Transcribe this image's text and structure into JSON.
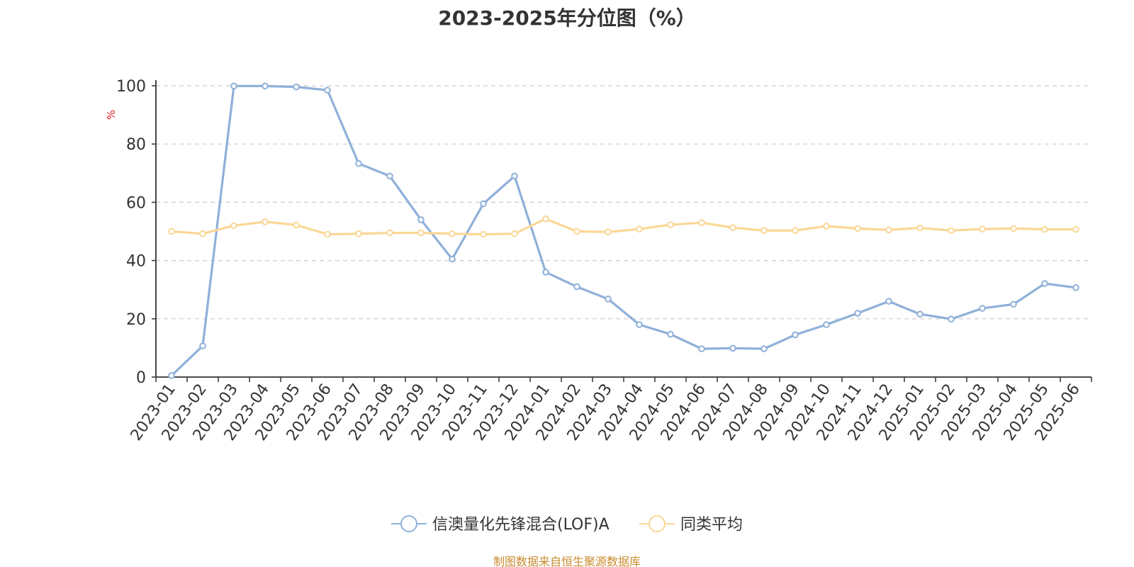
{
  "chart_data": {
    "type": "line",
    "title": "2023-2025年分位图（%）",
    "ylabel": "%",
    "xlabel": "",
    "ylim": [
      0,
      100
    ],
    "yticks": [
      "0",
      "20",
      "40",
      "60",
      "80",
      "100"
    ],
    "grid": true,
    "legend_position": "bottom-center",
    "categories": [
      "2023-01",
      "2023-02",
      "2023-03",
      "2023-04",
      "2023-05",
      "2023-06",
      "2023-07",
      "2023-08",
      "2023-09",
      "2023-10",
      "2023-11",
      "2023-12",
      "2024-01",
      "2024-02",
      "2024-03",
      "2024-04",
      "2024-05",
      "2024-06",
      "2024-07",
      "2024-08",
      "2024-09",
      "2024-10",
      "2024-11",
      "2024-12",
      "2025-01",
      "2025-02",
      "2025-03",
      "2025-04",
      "2025-05",
      "2025-06"
    ],
    "series": [
      {
        "name": "信澳量化先锋混合(LOF)A",
        "color": "#8fb0d9",
        "values": [
          0.5,
          10.7,
          99.9,
          99.9,
          99.6,
          98.5,
          73.3,
          69.0,
          54.0,
          40.5,
          59.5,
          69.0,
          36.0,
          31.0,
          26.8,
          18.0,
          14.7,
          9.7,
          9.9,
          9.7,
          14.5,
          18.0,
          21.9,
          26.0,
          21.6,
          19.9,
          23.6,
          25.0,
          32.1,
          30.7
        ]
      },
      {
        "name": "同类平均",
        "color": "#fad796",
        "values": [
          50.0,
          49.2,
          52.0,
          53.3,
          52.2,
          49.0,
          49.2,
          49.5,
          49.5,
          49.2,
          49.0,
          49.2,
          54.3,
          50.0,
          49.8,
          50.8,
          52.3,
          53.0,
          51.3,
          50.3,
          50.3,
          51.8,
          51.0,
          50.5,
          51.2,
          50.3,
          50.8,
          51.0,
          50.7,
          50.7
        ]
      }
    ]
  },
  "source_note": "制图数据来自恒生聚源数据库"
}
